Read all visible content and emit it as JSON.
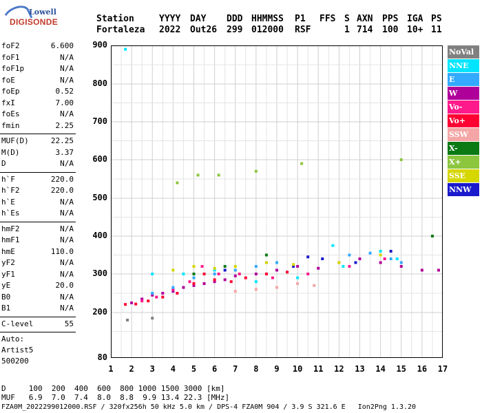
{
  "logo": {
    "top": "Lowell",
    "brand": "DIGISONDE"
  },
  "header": {
    "labels": [
      "Station",
      "YYYY",
      "DAY",
      "DDD",
      "HHMMSS",
      "P1",
      "FFS",
      "S",
      "AXN",
      "PPS",
      "IGA",
      "PS"
    ],
    "values": [
      "Fortaleza",
      "2022",
      "Out26",
      "299",
      "012000",
      "RSF",
      "",
      "1",
      "714",
      "100",
      "10+",
      "11"
    ]
  },
  "params": {
    "group1": [
      {
        "label": "foF2",
        "value": "6.600"
      },
      {
        "label": "foF1",
        "value": "N/A"
      },
      {
        "label": "foF1p",
        "value": "N/A"
      },
      {
        "label": "foE",
        "value": "N/A"
      },
      {
        "label": "foEp",
        "value": "0.52"
      },
      {
        "label": "fxI",
        "value": "7.00"
      },
      {
        "label": "foEs",
        "value": "N/A"
      },
      {
        "label": "fmin",
        "value": "2.25"
      }
    ],
    "group2": [
      {
        "label": "MUF(D)",
        "value": "22.25"
      },
      {
        "label": "M(D)",
        "value": "3.37"
      },
      {
        "label": "D",
        "value": "N/A"
      }
    ],
    "group3": [
      {
        "label": "h`F",
        "value": "220.0"
      },
      {
        "label": "h`F2",
        "value": "220.0"
      },
      {
        "label": "h`E",
        "value": "N/A"
      },
      {
        "label": "h`Es",
        "value": "N/A"
      }
    ],
    "group4": [
      {
        "label": "hmF2",
        "value": "N/A"
      },
      {
        "label": "hmF1",
        "value": "N/A"
      },
      {
        "label": "hmE",
        "value": "110.0"
      },
      {
        "label": "yF2",
        "value": "N/A"
      },
      {
        "label": "yF1",
        "value": "N/A"
      },
      {
        "label": "yE",
        "value": "20.0"
      },
      {
        "label": "B0",
        "value": "N/A"
      },
      {
        "label": "B1",
        "value": "N/A"
      }
    ],
    "group5": [
      {
        "label": "C-level",
        "value": "55"
      }
    ],
    "auto": [
      "Auto:",
      "Artist5",
      "500200"
    ]
  },
  "legend": [
    {
      "label": "NoVal",
      "color": "#808080"
    },
    {
      "label": "NNE",
      "color": "#00e5ff"
    },
    {
      "label": "E",
      "color": "#33aaff"
    },
    {
      "label": "W",
      "color": "#b0009a"
    },
    {
      "label": "Vo-",
      "color": "#ff1a8c"
    },
    {
      "label": "Vo+",
      "color": "#ff0033"
    },
    {
      "label": "SSW",
      "color": "#f4a6a6"
    },
    {
      "label": "X-",
      "color": "#0b7a14"
    },
    {
      "label": "X+",
      "color": "#8cc63f"
    },
    {
      "label": "SSE",
      "color": "#d6d600"
    },
    {
      "label": "NNW",
      "color": "#1a1acc"
    }
  ],
  "chart_data": {
    "type": "scatter",
    "title": "",
    "xlabel": "",
    "ylabel": "",
    "xlim": [
      1,
      17
    ],
    "ylim": [
      80,
      900
    ],
    "x_ticks": [
      "1",
      "2",
      "3",
      "4",
      "5",
      "6",
      "7",
      "8",
      "9",
      "10",
      "11",
      "12",
      "13",
      "14",
      "15",
      "16",
      "17"
    ],
    "y_ticks": [
      "80",
      "200",
      "300",
      "400",
      "500",
      "600",
      "700",
      "800",
      "900"
    ],
    "grid": true,
    "legend_position": "right",
    "series": [
      {
        "name": "W",
        "points": [
          [
            2.0,
            225
          ],
          [
            2.5,
            235
          ],
          [
            3.0,
            245
          ],
          [
            3.5,
            250
          ],
          [
            4.0,
            255
          ],
          [
            4.5,
            265
          ],
          [
            5.0,
            270
          ],
          [
            5.5,
            275
          ],
          [
            6.0,
            280
          ],
          [
            6.5,
            285
          ],
          [
            7.0,
            295
          ],
          [
            8.0,
            300
          ],
          [
            9.0,
            310
          ],
          [
            10.0,
            320
          ],
          [
            11.0,
            315
          ],
          [
            12.0,
            330
          ],
          [
            13.0,
            340
          ],
          [
            14.0,
            330
          ],
          [
            15.0,
            320
          ],
          [
            16.0,
            310
          ],
          [
            16.8,
            310
          ]
        ]
      },
      {
        "name": "Vo+",
        "points": [
          [
            1.7,
            221
          ],
          [
            2.2,
            222
          ],
          [
            2.8,
            230
          ],
          [
            3.5,
            240
          ],
          [
            4.2,
            250
          ],
          [
            5.0,
            275
          ],
          [
            5.5,
            300
          ],
          [
            6.0,
            285
          ],
          [
            6.8,
            280
          ],
          [
            7.5,
            290
          ],
          [
            8.5,
            300
          ],
          [
            9.5,
            305
          ]
        ]
      },
      {
        "name": "Vo-",
        "points": [
          [
            2.5,
            230
          ],
          [
            3.2,
            240
          ],
          [
            4.0,
            260
          ],
          [
            4.8,
            280
          ],
          [
            5.4,
            320
          ],
          [
            6.2,
            300
          ],
          [
            7.2,
            300
          ],
          [
            8.8,
            290
          ],
          [
            10.5,
            300
          ],
          [
            12.5,
            320
          ],
          [
            14.2,
            340
          ]
        ]
      },
      {
        "name": "E",
        "points": [
          [
            3.0,
            250
          ],
          [
            4.0,
            265
          ],
          [
            5.0,
            290
          ],
          [
            6.0,
            300
          ],
          [
            7.0,
            310
          ],
          [
            8.0,
            320
          ],
          [
            9.0,
            330
          ],
          [
            12.5,
            350
          ],
          [
            13.5,
            355
          ],
          [
            14.5,
            340
          ],
          [
            15.0,
            330
          ]
        ]
      },
      {
        "name": "NNE",
        "points": [
          [
            1.7,
            890
          ],
          [
            3.0,
            300
          ],
          [
            4.5,
            300
          ],
          [
            6.0,
            310
          ],
          [
            8.0,
            280
          ],
          [
            10.0,
            290
          ],
          [
            11.7,
            375
          ],
          [
            12.2,
            320
          ],
          [
            14.0,
            360
          ],
          [
            14.8,
            340
          ]
        ]
      },
      {
        "name": "NNW",
        "points": [
          [
            6.5,
            310
          ],
          [
            8.5,
            330
          ],
          [
            9.8,
            320
          ],
          [
            10.5,
            345
          ],
          [
            11.2,
            340
          ],
          [
            12.8,
            330
          ],
          [
            14.5,
            360
          ]
        ]
      },
      {
        "name": "SSE",
        "points": [
          [
            4.0,
            310
          ],
          [
            5.0,
            320
          ],
          [
            6.0,
            315
          ],
          [
            7.0,
            320
          ],
          [
            8.5,
            330
          ],
          [
            9.8,
            325
          ],
          [
            12.0,
            330
          ],
          [
            14.0,
            350
          ]
        ]
      },
      {
        "name": "SSW",
        "points": [
          [
            7.0,
            255
          ],
          [
            8.0,
            260
          ],
          [
            9.0,
            265
          ],
          [
            10.0,
            275
          ],
          [
            10.8,
            270
          ]
        ]
      },
      {
        "name": "X+",
        "points": [
          [
            4.2,
            540
          ],
          [
            5.2,
            560
          ],
          [
            6.2,
            560
          ],
          [
            8.0,
            570
          ],
          [
            10.2,
            590
          ],
          [
            15.0,
            600
          ]
        ]
      },
      {
        "name": "X-",
        "points": [
          [
            5.0,
            300
          ],
          [
            6.5,
            320
          ],
          [
            8.5,
            350
          ],
          [
            16.5,
            400
          ]
        ]
      },
      {
        "name": "NoVal",
        "points": [
          [
            1.8,
            180
          ],
          [
            3.0,
            185
          ]
        ]
      }
    ]
  },
  "x_axis_numbers": [
    "1",
    "2",
    "3",
    "4",
    "5",
    "6",
    "7",
    "8",
    "9",
    "10",
    "11",
    "12",
    "13",
    "14",
    "15",
    "16",
    "17"
  ],
  "bottom": {
    "d_row": "D     100  200  400  600  800 1000 1500 3000 [km]",
    "muf_row": "MUF   6.9  7.0  7.4  8.0  8.8  9.9 13.4 22.3 [MHz]",
    "footer": "FZA0M_2022299012000.RSF / 320fx256h 50 kHz 5.0 km / DPS-4 FZA0M 904 / 3.9 S 321.6 E   Ion2Png 1.3.20"
  }
}
